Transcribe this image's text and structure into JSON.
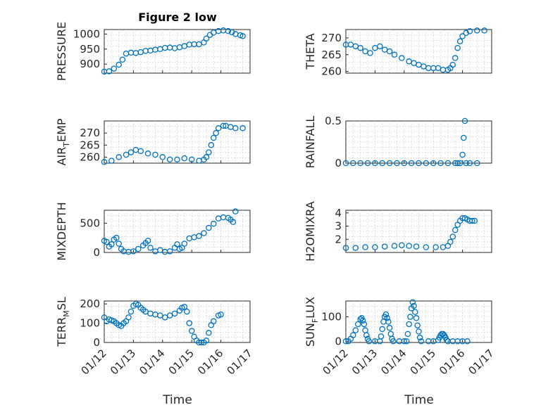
{
  "figure_title": "Figure 2 low",
  "xaxis_label": "Time",
  "xtick_labels": [
    "01/12",
    "01/13",
    "01/14",
    "01/15",
    "01/16",
    "01/17"
  ],
  "colors": {
    "marker": "#0072bd",
    "axis": "#262626",
    "grid": "#c8c8c8"
  },
  "chart_data": [
    {
      "type": "scatter",
      "ylabel": "PRESSURE",
      "yticks": [
        "900",
        "950",
        "1000"
      ],
      "ylim": [
        870,
        1015
      ],
      "xlim": [
        "01/12",
        "01/17"
      ],
      "grid": true,
      "x_range": [
        "01/12 00:00",
        "01/16 03:00"
      ],
      "points": [
        [
          0,
          875
        ],
        [
          4,
          876
        ],
        [
          8,
          885
        ],
        [
          12,
          898
        ],
        [
          15,
          915
        ],
        [
          18,
          935
        ],
        [
          22,
          938
        ],
        [
          26,
          937
        ],
        [
          30,
          940
        ],
        [
          34,
          944
        ],
        [
          38,
          945
        ],
        [
          42,
          948
        ],
        [
          46,
          950
        ],
        [
          50,
          954
        ],
        [
          54,
          955
        ],
        [
          58,
          953
        ],
        [
          62,
          956
        ],
        [
          66,
          960
        ],
        [
          70,
          965
        ],
        [
          74,
          966
        ],
        [
          78,
          966
        ],
        [
          82,
          972
        ],
        [
          84,
          985
        ],
        [
          87,
          997
        ],
        [
          90,
          1005
        ],
        [
          94,
          1010
        ],
        [
          98,
          1012
        ],
        [
          102,
          1010
        ],
        [
          105,
          1006
        ],
        [
          108,
          1000
        ],
        [
          112,
          996
        ],
        [
          114,
          993
        ]
      ]
    },
    {
      "type": "scatter",
      "ylabel": "THETA",
      "yticks": [
        "260",
        "265",
        "270"
      ],
      "ylim": [
        259.5,
        272.5
      ],
      "xlim": [
        "01/12",
        "01/17"
      ],
      "grid": true,
      "x_range": [
        "01/12 00:00",
        "01/16 03:00"
      ],
      "points": [
        [
          0,
          268
        ],
        [
          4,
          268
        ],
        [
          8,
          267.5
        ],
        [
          12,
          267
        ],
        [
          16,
          266
        ],
        [
          20,
          265.5
        ],
        [
          24,
          267
        ],
        [
          28,
          267.5
        ],
        [
          32,
          266.5
        ],
        [
          36,
          266
        ],
        [
          40,
          265
        ],
        [
          46,
          264
        ],
        [
          52,
          263
        ],
        [
          56,
          262.5
        ],
        [
          60,
          262
        ],
        [
          64,
          261.5
        ],
        [
          68,
          261
        ],
        [
          72,
          261
        ],
        [
          76,
          261
        ],
        [
          80,
          260.5
        ],
        [
          84,
          260.5
        ],
        [
          86,
          261
        ],
        [
          88,
          262
        ],
        [
          90,
          264
        ],
        [
          92,
          267
        ],
        [
          94,
          269
        ],
        [
          96,
          270.5
        ],
        [
          99,
          271.5
        ],
        [
          102,
          272
        ],
        [
          108,
          272.2
        ],
        [
          114,
          272.2
        ]
      ]
    },
    {
      "type": "scatter",
      "ylabel": "AIR_TEMP",
      "ylabel_main": "AIR",
      "ylabel_sub": "T",
      "ylabel_rest": "EMP",
      "yticks": [
        "260",
        "265",
        "270"
      ],
      "ylim": [
        257.5,
        275
      ],
      "xlim": [
        "01/12",
        "01/17"
      ],
      "grid": true,
      "x_range": [
        "01/12 00:00",
        "01/16 03:00"
      ],
      "points": [
        [
          0,
          258
        ],
        [
          6,
          258.5
        ],
        [
          12,
          260
        ],
        [
          18,
          261
        ],
        [
          22,
          262
        ],
        [
          26,
          263
        ],
        [
          30,
          262.5
        ],
        [
          36,
          261.5
        ],
        [
          42,
          261
        ],
        [
          48,
          260
        ],
        [
          54,
          259
        ],
        [
          60,
          259
        ],
        [
          66,
          259.5
        ],
        [
          72,
          259
        ],
        [
          78,
          258.5
        ],
        [
          82,
          259
        ],
        [
          84,
          260
        ],
        [
          86,
          262
        ],
        [
          88,
          265
        ],
        [
          90,
          268
        ],
        [
          92,
          270
        ],
        [
          94,
          272
        ],
        [
          98,
          273
        ],
        [
          100,
          273
        ],
        [
          104,
          272.5
        ],
        [
          108,
          272
        ],
        [
          114,
          272
        ]
      ]
    },
    {
      "type": "scatter",
      "ylabel": "RAINFALL",
      "yticks": [
        "0",
        "0.5"
      ],
      "ylim": [
        0,
        0.5
      ],
      "xlim": [
        "01/12",
        "01/17"
      ],
      "grid": true,
      "x_range": [
        "01/12 00:00",
        "01/16 03:00"
      ],
      "points": [
        [
          0,
          0
        ],
        [
          6,
          0
        ],
        [
          12,
          0
        ],
        [
          18,
          0
        ],
        [
          24,
          0
        ],
        [
          30,
          0
        ],
        [
          36,
          0
        ],
        [
          42,
          0
        ],
        [
          48,
          0
        ],
        [
          54,
          0
        ],
        [
          60,
          0
        ],
        [
          66,
          0
        ],
        [
          72,
          0
        ],
        [
          78,
          0
        ],
        [
          84,
          0
        ],
        [
          90,
          0
        ],
        [
          92,
          0
        ],
        [
          94,
          0
        ],
        [
          96,
          0.1
        ],
        [
          97,
          0.3
        ],
        [
          98,
          0.5
        ],
        [
          99,
          0
        ],
        [
          102,
          0
        ],
        [
          108,
          0
        ]
      ]
    },
    {
      "type": "scatter",
      "ylabel": "MIXDEPTH",
      "yticks": [
        "0",
        "500"
      ],
      "ylim": [
        0,
        720
      ],
      "xlim": [
        "01/12",
        "01/17"
      ],
      "grid": true,
      "x_range": [
        "01/12 00:00",
        "01/16 03:00"
      ],
      "points": [
        [
          0,
          200
        ],
        [
          2,
          180
        ],
        [
          4,
          100
        ],
        [
          6,
          140
        ],
        [
          8,
          220
        ],
        [
          10,
          250
        ],
        [
          12,
          150
        ],
        [
          14,
          60
        ],
        [
          16,
          20
        ],
        [
          20,
          10
        ],
        [
          24,
          20
        ],
        [
          28,
          60
        ],
        [
          32,
          120
        ],
        [
          34,
          160
        ],
        [
          36,
          200
        ],
        [
          38,
          80
        ],
        [
          42,
          20
        ],
        [
          46,
          40
        ],
        [
          50,
          10
        ],
        [
          54,
          20
        ],
        [
          58,
          80
        ],
        [
          60,
          140
        ],
        [
          62,
          60
        ],
        [
          64,
          80
        ],
        [
          66,
          150
        ],
        [
          70,
          240
        ],
        [
          74,
          260
        ],
        [
          78,
          280
        ],
        [
          82,
          330
        ],
        [
          86,
          420
        ],
        [
          90,
          490
        ],
        [
          94,
          580
        ],
        [
          98,
          600
        ],
        [
          102,
          590
        ],
        [
          104,
          560
        ],
        [
          106,
          520
        ],
        [
          108,
          700
        ]
      ]
    },
    {
      "type": "scatter",
      "ylabel": "H2OMIXRA",
      "yticks": [
        "2",
        "3",
        "4"
      ],
      "ylim": [
        1,
        4.2
      ],
      "xlim": [
        "01/12",
        "01/17"
      ],
      "grid": true,
      "x_range": [
        "01/12 00:00",
        "01/16 03:00"
      ],
      "points": [
        [
          0,
          1.35
        ],
        [
          8,
          1.35
        ],
        [
          16,
          1.4
        ],
        [
          24,
          1.4
        ],
        [
          32,
          1.45
        ],
        [
          40,
          1.5
        ],
        [
          46,
          1.55
        ],
        [
          52,
          1.5
        ],
        [
          58,
          1.45
        ],
        [
          66,
          1.4
        ],
        [
          74,
          1.4
        ],
        [
          80,
          1.4
        ],
        [
          84,
          1.5
        ],
        [
          86,
          1.8
        ],
        [
          88,
          2.2
        ],
        [
          90,
          2.7
        ],
        [
          92,
          3.1
        ],
        [
          94,
          3.4
        ],
        [
          96,
          3.6
        ],
        [
          98,
          3.6
        ],
        [
          100,
          3.5
        ],
        [
          102,
          3.4
        ],
        [
          104,
          3.4
        ],
        [
          106,
          3.4
        ]
      ]
    },
    {
      "type": "scatter",
      "ylabel": "TERR_MSL",
      "ylabel_main": "TERR",
      "ylabel_sub": "M",
      "ylabel_rest": "SL",
      "yticks": [
        "0",
        "100",
        "200"
      ],
      "ylim": [
        0,
        215
      ],
      "xlim": [
        "01/12",
        "01/17"
      ],
      "grid": true,
      "x_range": [
        "01/12 00:00",
        "01/16 03:00"
      ],
      "points": [
        [
          0,
          130
        ],
        [
          2,
          110
        ],
        [
          4,
          120
        ],
        [
          6,
          115
        ],
        [
          8,
          110
        ],
        [
          10,
          100
        ],
        [
          12,
          90
        ],
        [
          14,
          85
        ],
        [
          16,
          100
        ],
        [
          18,
          110
        ],
        [
          20,
          130
        ],
        [
          22,
          160
        ],
        [
          24,
          190
        ],
        [
          26,
          200
        ],
        [
          28,
          195
        ],
        [
          30,
          180
        ],
        [
          32,
          170
        ],
        [
          34,
          160
        ],
        [
          38,
          150
        ],
        [
          42,
          145
        ],
        [
          46,
          140
        ],
        [
          50,
          130
        ],
        [
          54,
          140
        ],
        [
          58,
          150
        ],
        [
          62,
          165
        ],
        [
          64,
          180
        ],
        [
          66,
          185
        ],
        [
          68,
          160
        ],
        [
          70,
          100
        ],
        [
          72,
          60
        ],
        [
          74,
          30
        ],
        [
          76,
          10
        ],
        [
          78,
          0
        ],
        [
          80,
          0
        ],
        [
          82,
          0
        ],
        [
          84,
          10
        ],
        [
          86,
          50
        ],
        [
          88,
          90
        ],
        [
          90,
          110
        ],
        [
          94,
          140
        ],
        [
          96,
          145
        ]
      ]
    },
    {
      "type": "scatter",
      "ylabel": "SUN_FLUX",
      "ylabel_main": "SUN",
      "ylabel_sub": "F",
      "ylabel_rest": "LUX",
      "yticks": [
        "0",
        "100"
      ],
      "ylim": [
        -5,
        165
      ],
      "xlim": [
        "01/12",
        "01/17"
      ],
      "grid": true,
      "x_range": [
        "01/12 00:00",
        "01/16 03:00"
      ],
      "points": [
        [
          0,
          0
        ],
        [
          2,
          0
        ],
        [
          4,
          10
        ],
        [
          6,
          25
        ],
        [
          8,
          45
        ],
        [
          10,
          70
        ],
        [
          12,
          90
        ],
        [
          13,
          95
        ],
        [
          14,
          85
        ],
        [
          15,
          70
        ],
        [
          16,
          45
        ],
        [
          17,
          25
        ],
        [
          18,
          10
        ],
        [
          19,
          0
        ],
        [
          24,
          0
        ],
        [
          28,
          0
        ],
        [
          29,
          20
        ],
        [
          30,
          50
        ],
        [
          31,
          80
        ],
        [
          32,
          100
        ],
        [
          33,
          110
        ],
        [
          34,
          95
        ],
        [
          35,
          80
        ],
        [
          36,
          55
        ],
        [
          37,
          30
        ],
        [
          38,
          10
        ],
        [
          39,
          0
        ],
        [
          44,
          0
        ],
        [
          48,
          0
        ],
        [
          50,
          0
        ],
        [
          51,
          30
        ],
        [
          52,
          70
        ],
        [
          53,
          100
        ],
        [
          54,
          135
        ],
        [
          55,
          160
        ],
        [
          56,
          145
        ],
        [
          57,
          120
        ],
        [
          58,
          95
        ],
        [
          59,
          65
        ],
        [
          60,
          40
        ],
        [
          61,
          15
        ],
        [
          62,
          0
        ],
        [
          68,
          0
        ],
        [
          72,
          0
        ],
        [
          76,
          5
        ],
        [
          77,
          15
        ],
        [
          78,
          25
        ],
        [
          79,
          30
        ],
        [
          80,
          30
        ],
        [
          81,
          25
        ],
        [
          82,
          15
        ],
        [
          83,
          5
        ],
        [
          84,
          0
        ],
        [
          88,
          0
        ],
        [
          92,
          0
        ],
        [
          96,
          0
        ],
        [
          100,
          0
        ]
      ]
    }
  ]
}
